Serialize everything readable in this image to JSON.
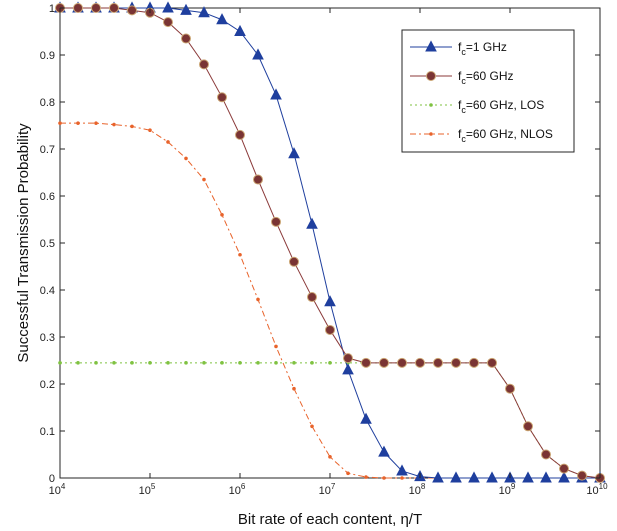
{
  "chart_data": {
    "type": "line",
    "xscale": "log",
    "xlim": [
      10000,
      10000000000
    ],
    "ylim": [
      0,
      1
    ],
    "xlabel": "Bit rate of each content, η/T",
    "ylabel": "Successful Transmission Probability",
    "x_tick_exponents": [
      "4",
      "5",
      "6",
      "7",
      "8",
      "9",
      "10"
    ],
    "x_tick_base": "10",
    "y_ticks": [
      "0",
      "0.1",
      "0.2",
      "0.3",
      "0.4",
      "0.5",
      "0.6",
      "0.7",
      "0.8",
      "0.9",
      "1"
    ],
    "legend_position": "top-right",
    "grid": false,
    "x": [
      10000,
      15850,
      25120,
      39810,
      63100,
      100000,
      158500,
      251200,
      398100,
      631000,
      1000000,
      1585000,
      2512000,
      3981000,
      6310000,
      10000000,
      15850000,
      25120000,
      39810000,
      63100000,
      100000000,
      158500000,
      251200000,
      398100000,
      631000000,
      1000000000,
      1585000000,
      2512000000,
      3981000000,
      6310000000,
      10000000000
    ],
    "series": [
      {
        "name": "f_c=1 GHz",
        "color": "#1f3f9e",
        "marker": "triangle",
        "values": [
          1.0,
          1.0,
          1.0,
          1.0,
          1.0,
          1.0,
          1.0,
          0.995,
          0.99,
          0.975,
          0.95,
          0.9,
          0.815,
          0.69,
          0.54,
          0.375,
          0.23,
          0.125,
          0.055,
          0.015,
          0.003,
          0.0,
          0.0,
          0.0,
          0.0,
          0.0,
          0.0,
          0.0,
          0.0,
          0.0,
          0.0
        ]
      },
      {
        "name": "f_c=60 GHz",
        "color": "#8b3a3a",
        "marker": "circle",
        "values": [
          1.0,
          1.0,
          1.0,
          1.0,
          0.995,
          0.99,
          0.97,
          0.935,
          0.88,
          0.81,
          0.73,
          0.635,
          0.545,
          0.46,
          0.385,
          0.315,
          0.255,
          0.245,
          0.245,
          0.245,
          0.245,
          0.245,
          0.245,
          0.245,
          0.245,
          0.19,
          0.11,
          0.05,
          0.02,
          0.005,
          0.0
        ]
      },
      {
        "name": "f_c=60 GHz, LOS",
        "color": "#7fc241",
        "marker": "dot",
        "dash": "2,3",
        "values": [
          0.245,
          0.245,
          0.245,
          0.245,
          0.245,
          0.245,
          0.245,
          0.245,
          0.245,
          0.245,
          0.245,
          0.245,
          0.245,
          0.245,
          0.245,
          0.245,
          0.245,
          0.245,
          0.245,
          0.245,
          0.245,
          0.245,
          0.245,
          0.245,
          0.245,
          0.19,
          0.11,
          0.05,
          0.02,
          0.005,
          0.0
        ]
      },
      {
        "name": "f_c=60 GHz, NLOS",
        "color": "#e8632b",
        "marker": "dot",
        "dash": "6,3,2,3",
        "values": [
          0.755,
          0.755,
          0.755,
          0.752,
          0.748,
          0.74,
          0.715,
          0.68,
          0.635,
          0.56,
          0.475,
          0.38,
          0.28,
          0.19,
          0.11,
          0.045,
          0.01,
          0.002,
          0.0,
          0.0,
          0.0,
          0.0,
          0.0,
          0.0,
          0.0,
          0.0,
          0.0,
          0.0,
          0.0,
          0.0,
          0.0
        ]
      }
    ],
    "legend": [
      {
        "prefix": "f",
        "sub": "c",
        "suffix": "=1 GHz"
      },
      {
        "prefix": "f",
        "sub": "c",
        "suffix": "=60 GHz"
      },
      {
        "prefix": "f",
        "sub": "c",
        "suffix": "=60 GHz, LOS"
      },
      {
        "prefix": "f",
        "sub": "c",
        "suffix": "=60 GHz, NLOS"
      }
    ]
  }
}
